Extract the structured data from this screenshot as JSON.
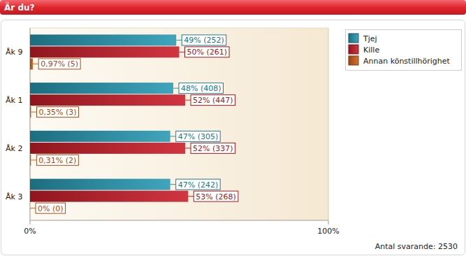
{
  "chart_data": {
    "type": "bar",
    "title": "Är du?",
    "orientation": "horizontal",
    "categories": [
      "Åk 9",
      "Åk 1",
      "Åk 2",
      "Åk 3"
    ],
    "series": [
      {
        "name": "Tjej",
        "color": "#2a9bb6",
        "values": [
          49,
          48,
          47,
          47
        ],
        "value_labels": [
          "49% (252)",
          "48% (408)",
          "47% (305)",
          "47% (242)"
        ]
      },
      {
        "name": "Kille",
        "color": "#cc1f2b",
        "values": [
          50,
          52,
          52,
          53
        ],
        "value_labels": [
          "50% (261)",
          "52% (447)",
          "52% (337)",
          "53% (268)"
        ]
      },
      {
        "name": "Annan könstillhörighet",
        "color": "#d4621c",
        "values": [
          0.97,
          0.35,
          0.31,
          0
        ],
        "value_labels": [
          "0,97% (5)",
          "0,35% (3)",
          "0,31% (2)",
          "0% (0)"
        ]
      }
    ],
    "xlim": [
      0,
      100
    ],
    "xticks": [
      {
        "value": 0,
        "label": "0%"
      },
      {
        "value": 100,
        "label": "100%"
      }
    ],
    "grid": true,
    "legend": "right",
    "data_labels": true,
    "annotations": [
      "Antal svarande: 2530"
    ]
  }
}
